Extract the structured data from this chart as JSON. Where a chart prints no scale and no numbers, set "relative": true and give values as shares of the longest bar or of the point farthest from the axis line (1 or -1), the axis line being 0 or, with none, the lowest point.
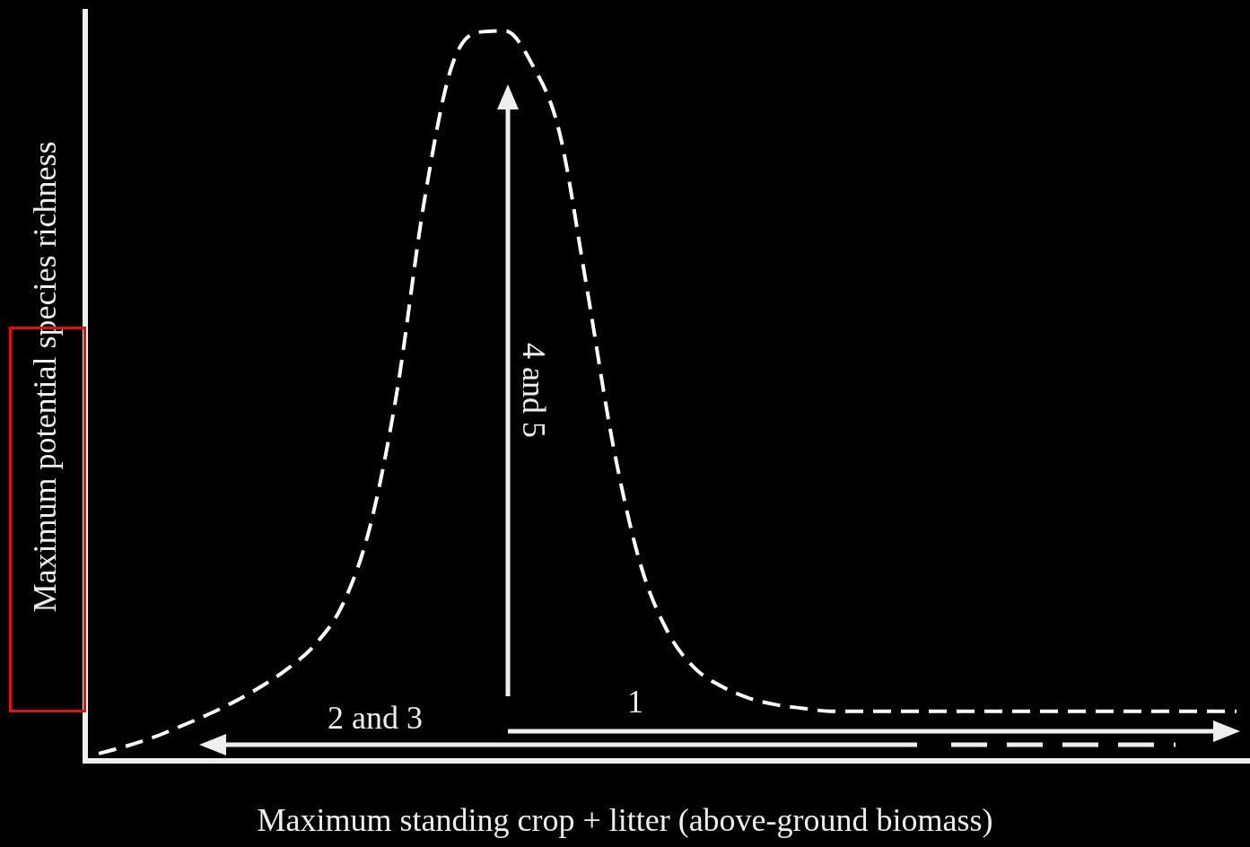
{
  "chart_data": {
    "type": "line",
    "relative": true,
    "xlabel": "Maximum standing crop + litter (above-ground biomass)",
    "ylabel": "Maximum potential species richness",
    "categories": [
      null,
      null,
      null,
      null,
      null,
      null,
      null,
      null,
      null,
      null,
      null,
      null,
      null,
      null,
      null,
      null,
      null,
      null,
      null,
      null,
      null,
      null,
      null,
      null,
      null,
      null,
      null,
      null,
      null,
      null,
      null,
      null,
      null,
      null,
      null,
      null,
      null,
      null,
      null,
      null,
      null,
      null,
      null
    ],
    "series": [
      {
        "color": "#ffffff",
        "values": [
          0.01,
          0.02,
          0.032,
          0.047,
          0.063,
          0.081,
          0.102,
          0.127,
          0.16,
          0.214,
          0.319,
          0.504,
          0.763,
          0.948,
          0.998,
          1,
          0.954,
          0.862,
          0.652,
          0.43,
          0.269,
          0.177,
          0.127,
          0.102,
          0.086,
          0.077,
          0.072,
          0.068,
          0.068,
          0.068,
          0.068,
          0.068,
          0.068,
          0.068,
          0.068,
          0.068,
          0.068,
          0.068,
          0.068,
          0.068,
          0.068,
          0.068,
          0.068
        ]
      }
    ],
    "line_style": "dashed",
    "marker": "none",
    "grid": false,
    "legend": false,
    "annotations": [
      "4 and 5",
      "1",
      "2 and 3"
    ]
  }
}
